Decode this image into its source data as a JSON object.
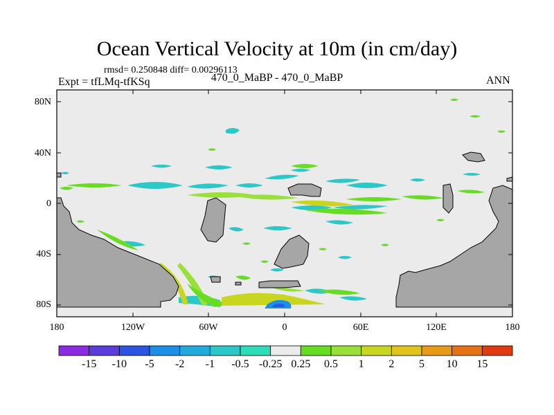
{
  "map": {
    "title": "Ocean Vertical Velocity at 10m (in cm/day)",
    "stats": "rmsd= 0.250848 diff= 0.00296113",
    "experiment": "Expt = tfLMq-tfKSq",
    "case": "470_0_MaBP - 470_0_MaBP",
    "season": "ANN",
    "lat_labels": [
      "80N",
      "40N",
      "0",
      "40S",
      "80S"
    ],
    "lon_labels": [
      "180",
      "120W",
      "60W",
      "0",
      "60E",
      "120E",
      "180"
    ]
  },
  "colorbar": {
    "colors": [
      "#8a2be2",
      "#5a3ddb",
      "#2b55e0",
      "#1e8fe6",
      "#22aadd",
      "#2ec7c7",
      "#2edcb8",
      "#ebebeb",
      "#66dd22",
      "#9be03a",
      "#c8d622",
      "#e0c51c",
      "#e69a18",
      "#e67216",
      "#e03a10"
    ],
    "labels": [
      "-15",
      "-10",
      "-5",
      "-2",
      "-1",
      "-0.5",
      "-0.25",
      "0.25",
      "0.5",
      "1",
      "2",
      "5",
      "10",
      "15"
    ]
  },
  "colors": {
    "ocean": "#ebebeb",
    "land": "#a6a6a6"
  }
}
